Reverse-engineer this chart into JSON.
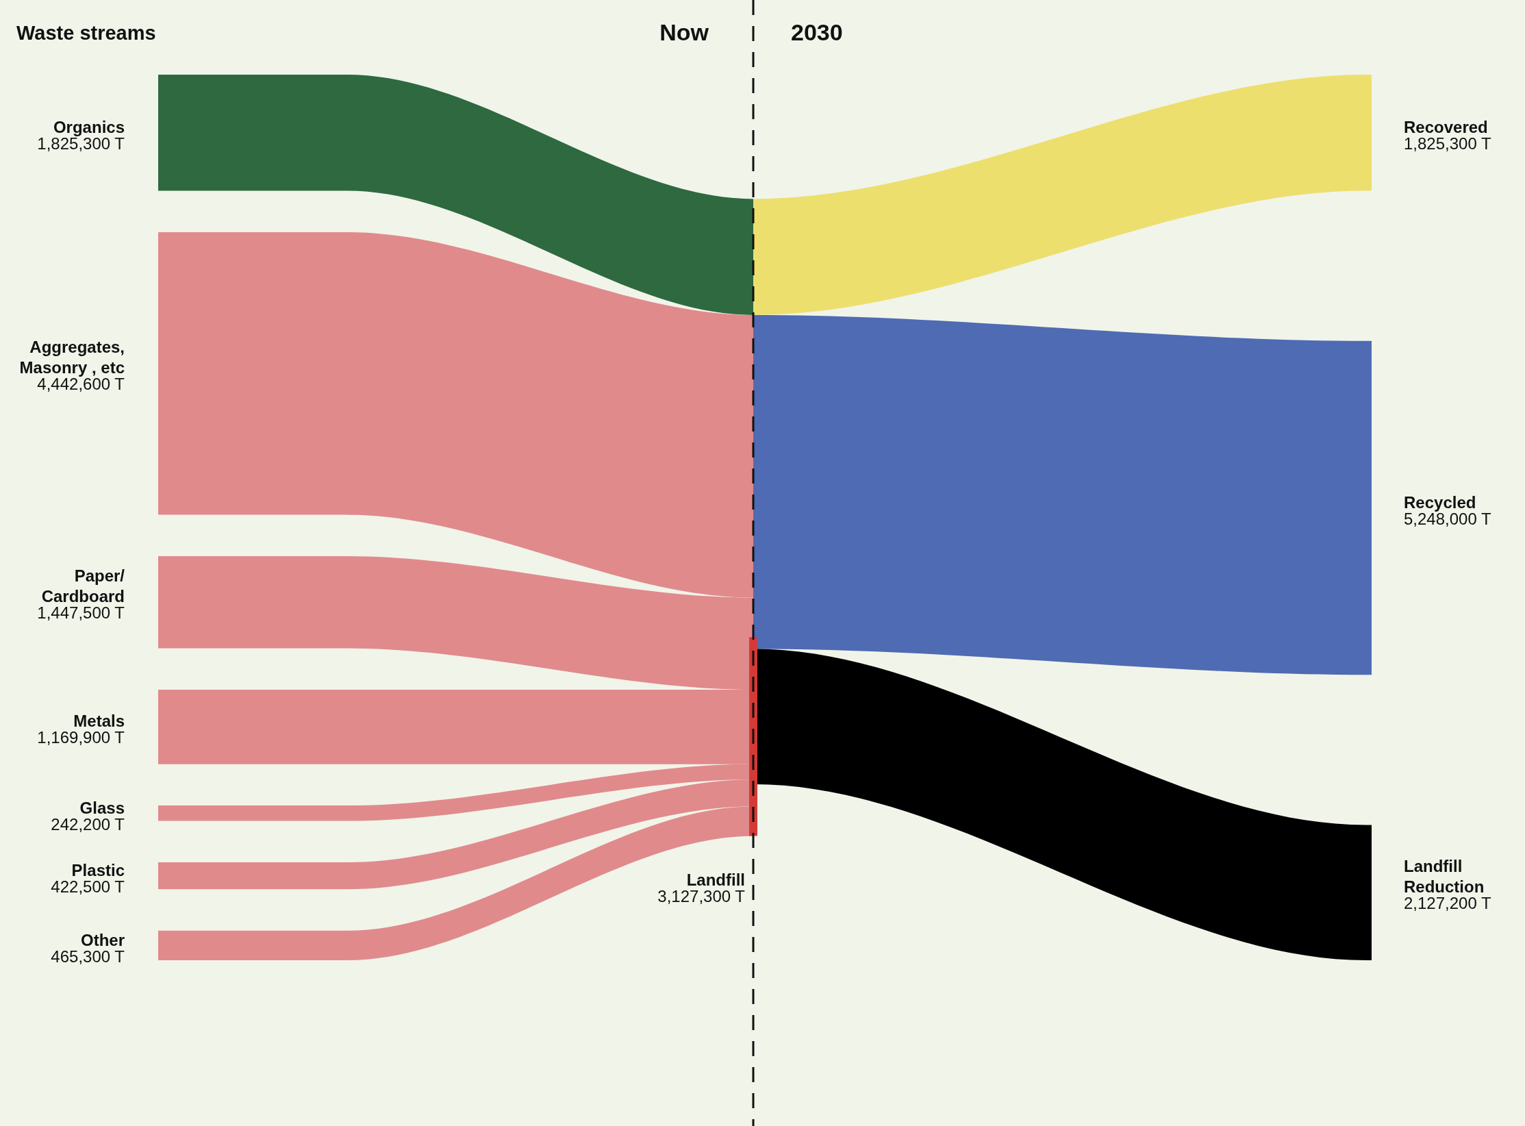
{
  "chart_data": {
    "type": "other",
    "categories": [
      "Organics",
      "Aggregates,\nMasonry , etc",
      "Paper/\nCardboard",
      "Metals",
      "Glass",
      "Plastic",
      "Other",
      "Landfill",
      "Recovered",
      "Recycled",
      "Landfill\nReduction"
    ],
    "series": [
      {
        "name": "Waste streams",
        "values": [
          1825300,
          4442600,
          1447500,
          1169900,
          242200,
          422500,
          465300,
          null,
          null,
          null,
          null
        ],
        "colors": [
          "#2e6940",
          "#e08a8c",
          "#e08a8c",
          "#e08a8c",
          "#e08a8c",
          "#e08a8c",
          "#e08a8c",
          null,
          null,
          null,
          null
        ],
        "value_labels": [
          "1,825,300 T",
          "4,442,600 T",
          "1,447,500 T",
          "1,169,900 T",
          "242,200 T",
          "422,500 T",
          "465,300 T",
          null,
          null,
          null,
          null
        ]
      },
      {
        "name": "Now",
        "values": [
          null,
          null,
          null,
          null,
          null,
          null,
          null,
          3127300,
          null,
          null,
          null
        ],
        "colors": [
          null,
          null,
          null,
          null,
          null,
          null,
          null,
          "#d33b37",
          null,
          null,
          null
        ],
        "value_labels": [
          null,
          null,
          null,
          null,
          null,
          null,
          null,
          "3,127,300 T",
          null,
          null,
          null
        ]
      },
      {
        "name": "2030",
        "values": [
          null,
          null,
          null,
          null,
          null,
          null,
          null,
          null,
          1825300,
          5248000,
          2127200
        ],
        "colors": [
          null,
          null,
          null,
          null,
          null,
          null,
          null,
          null,
          "#eddf6e",
          "#4f6bb3",
          "#000000"
        ],
        "value_labels": [
          null,
          null,
          null,
          null,
          null,
          null,
          null,
          null,
          "1,825,300 T",
          "5,248,000 T",
          "2,127,200 T"
        ]
      }
    ]
  }
}
